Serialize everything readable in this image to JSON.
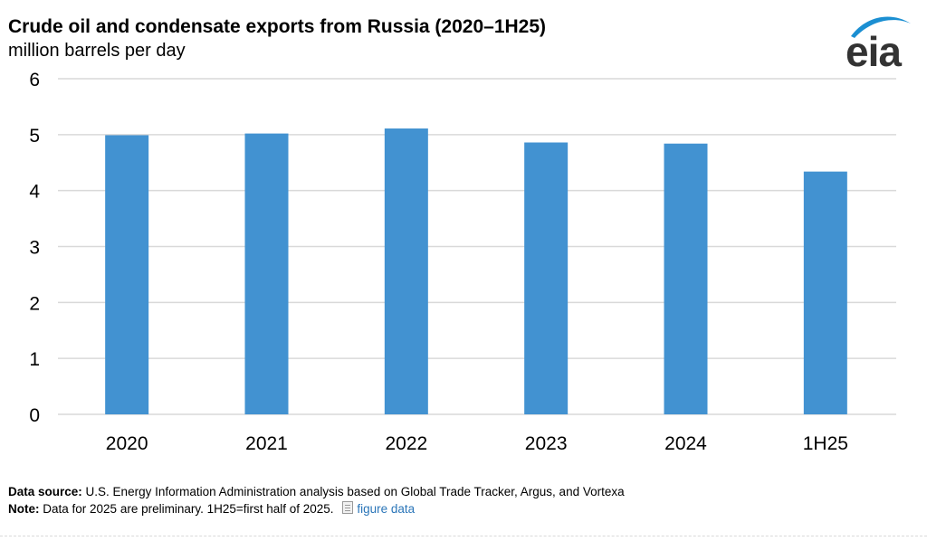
{
  "header": {
    "title": "Crude oil and condensate exports from Russia (2020–1H25)",
    "subtitle": "million barrels per day"
  },
  "logo": {
    "text": "eia",
    "icon": "eia-swoosh-logo",
    "color": "#1b8fd2"
  },
  "chart_data": {
    "type": "bar",
    "title": "Crude oil and condensate exports from Russia (2020–1H25)",
    "ylabel": "million barrels per day",
    "xlabel": "",
    "categories": [
      "2020",
      "2021",
      "2022",
      "2023",
      "2024",
      "1H25"
    ],
    "values": [
      4.99,
      5.02,
      5.11,
      4.86,
      4.84,
      4.34
    ],
    "ylim": [
      0,
      6
    ],
    "yticks": [
      "0",
      "1",
      "2",
      "3",
      "4",
      "5",
      "6"
    ],
    "grid": true,
    "legend": "none",
    "bar_color": "#4292d1",
    "grid_color": "#d9d9d9"
  },
  "footer": {
    "source_label": "Data source:",
    "source_text": "U.S. Energy Information Administration analysis based on Global Trade Tracker, Argus, and Vortexa",
    "note_label": "Note:",
    "note_text": "Data for 2025 are preliminary. 1H25=first half of 2025.",
    "figure_data_link": "figure data",
    "figure_data_icon": "document-icon"
  }
}
